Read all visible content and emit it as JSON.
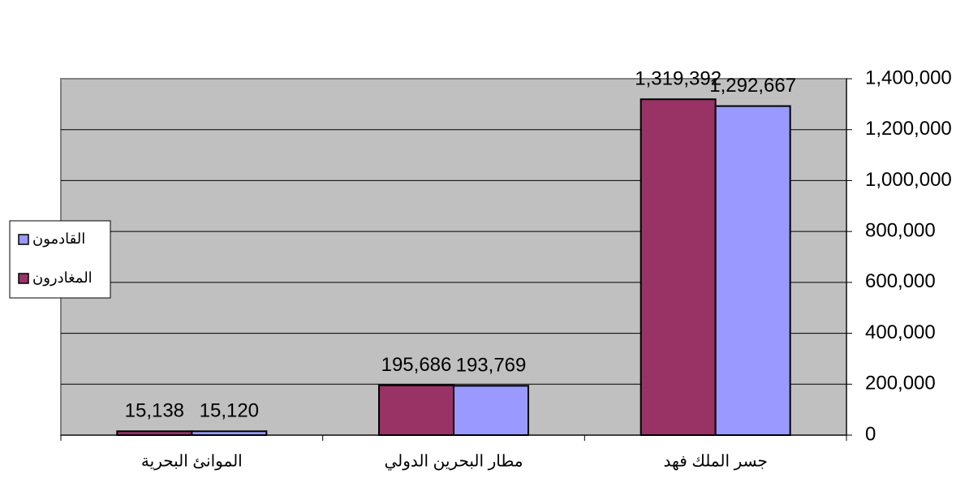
{
  "chart_data": {
    "type": "bar",
    "categories": [
      "الموانئ البحرية",
      "مطار البحرين الدولي",
      "جسر الملك فهد"
    ],
    "series": [
      {
        "name": "المغادرون",
        "color": "#993366",
        "values": [
          15138,
          195686,
          1319392
        ],
        "value_labels": [
          "15,138",
          "195,686",
          "1,319,392"
        ]
      },
      {
        "name": "القادمون",
        "color": "#9999ff",
        "values": [
          15120,
          193769,
          1292667
        ],
        "value_labels": [
          "15,120",
          "193,769",
          "1,292,667"
        ]
      }
    ],
    "ylim": [
      0,
      1400000
    ],
    "yticks": [
      0,
      {
        "value": 200000,
        "label": "200,000"
      },
      {
        "value": 400000,
        "label": "400,000"
      },
      {
        "value": 600000,
        "label": "600,000"
      },
      {
        "value": 800000,
        "label": "800,000"
      },
      {
        "value": 1000000,
        "label": "1,000,000"
      },
      {
        "value": 1200000,
        "label": "1,200,000"
      },
      {
        "value": 1400000,
        "label": "1,400,000"
      }
    ],
    "grid": true,
    "legend": "left",
    "plot_background": "#c0c0c0"
  }
}
